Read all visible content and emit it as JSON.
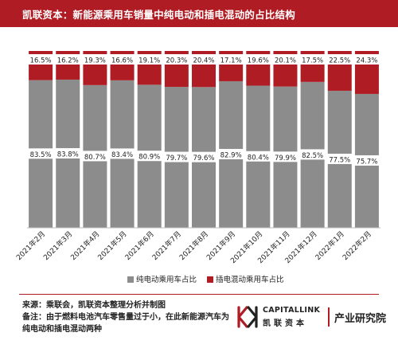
{
  "header": {
    "title": "凯联资本：新能源乘用车销量中纯电动和插电混动的占比结构"
  },
  "chart_data": {
    "type": "bar",
    "stacked": true,
    "categories": [
      "2021年2月",
      "2021年3月",
      "2021年4月",
      "2021年5月",
      "2021年6月",
      "2021年7月",
      "2021年8月",
      "2021年9月",
      "2021年10月",
      "2021年11月",
      "2021年12月",
      "2022年1月",
      "2022年2月"
    ],
    "series": [
      {
        "name": "纯电动乘用车占比",
        "color": "#8c8c8c",
        "values": [
          83.5,
          83.8,
          80.7,
          83.4,
          80.9,
          79.7,
          79.6,
          82.9,
          80.4,
          79.9,
          82.5,
          77.5,
          75.7
        ],
        "labels": [
          "83.5%",
          "83.8%",
          "80.7%",
          "83.4%",
          "80.9%",
          "79.7%",
          "79.6%",
          "82.9%",
          "80.4%",
          "79.9%",
          "82.5%",
          "77.5%",
          "75.7%"
        ]
      },
      {
        "name": "插电混动乘用车占比",
        "color": "#b01c24",
        "values": [
          16.5,
          16.2,
          19.3,
          16.6,
          19.1,
          20.3,
          20.4,
          17.1,
          19.6,
          20.1,
          17.5,
          22.5,
          24.3
        ],
        "labels": [
          "16.5%",
          "16.2%",
          "19.3%",
          "16.6%",
          "19.1%",
          "20.3%",
          "20.4%",
          "17.1%",
          "19.6%",
          "20.1%",
          "17.5%",
          "22.5%",
          "24.3%"
        ]
      }
    ],
    "ylim": [
      0,
      100
    ],
    "grid": false,
    "legend": "bottom"
  },
  "footer": {
    "source": "来源：乘联会，凯联资本整理分析并制图",
    "note": "备注：由于燃料电池汽车零售量过于小，在此新能源汽车为纯电动和插电混动两种",
    "brand_en": "CAPITALLINK",
    "brand_cn": "凯联资本",
    "institute": "产业研究院",
    "logo_icon": "capitallink-logo-icon"
  }
}
